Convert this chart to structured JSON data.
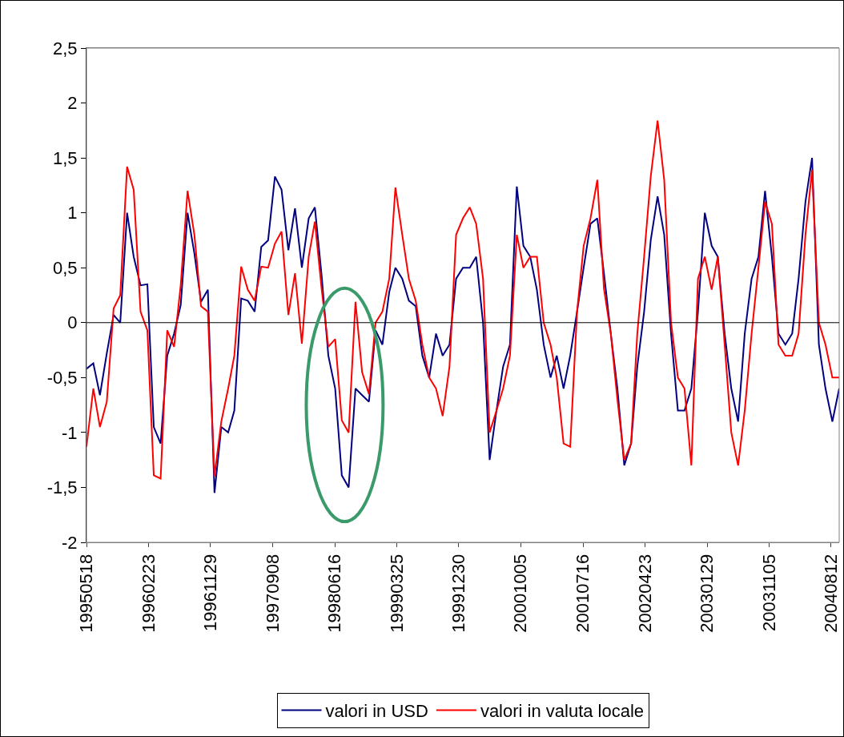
{
  "chart_data": {
    "type": "line",
    "x": [
      "1995-05-18",
      "1995-06-18",
      "1995-07-18",
      "1995-08-18",
      "1995-09-18",
      "1995-10-18",
      "1995-11-18",
      "1995-12-18",
      "1996-01-18",
      "1996-02-18",
      "1996-03-18",
      "1996-04-18",
      "1996-05-18",
      "1996-06-18",
      "1996-07-18",
      "1996-08-18",
      "1996-09-18",
      "1996-10-18",
      "1996-11-18",
      "1996-12-18",
      "1997-01-18",
      "1997-02-18",
      "1997-03-18",
      "1997-04-18",
      "1997-05-18",
      "1997-06-18",
      "1997-07-18",
      "1997-08-18",
      "1997-09-18",
      "1997-10-18",
      "1997-11-18",
      "1997-12-18",
      "1998-01-18",
      "1998-02-18",
      "1998-03-18",
      "1998-04-18",
      "1998-05-18",
      "1998-06-18",
      "1998-07-18",
      "1998-08-18",
      "1998-09-18",
      "1998-10-18",
      "1998-11-18",
      "1998-12-18",
      "1999-01-18",
      "1999-02-18",
      "1999-03-18",
      "1999-04-18",
      "1999-05-18",
      "1999-06-18",
      "1999-07-18",
      "1999-08-18",
      "1999-09-18",
      "1999-10-18",
      "1999-11-18",
      "1999-12-18",
      "2000-01-18",
      "2000-02-18",
      "2000-03-18",
      "2000-04-18",
      "2000-05-18",
      "2000-06-18",
      "2000-07-18",
      "2000-08-18",
      "2000-09-18",
      "2000-10-18",
      "2000-11-18",
      "2000-12-18",
      "2001-01-18",
      "2001-02-18",
      "2001-03-18",
      "2001-04-18",
      "2001-05-18",
      "2001-06-18",
      "2001-07-18",
      "2001-08-18",
      "2001-09-18",
      "2001-10-18",
      "2001-11-18",
      "2001-12-18",
      "2002-01-18",
      "2002-02-18",
      "2002-03-18",
      "2002-04-18",
      "2002-05-18",
      "2002-06-18",
      "2002-07-18",
      "2002-08-18",
      "2002-09-18",
      "2002-10-18",
      "2002-11-18",
      "2002-12-18",
      "2003-01-18",
      "2003-02-18",
      "2003-03-18",
      "2003-04-18",
      "2003-05-18",
      "2003-06-18",
      "2003-07-18",
      "2003-08-18",
      "2003-09-18",
      "2003-10-18",
      "2003-11-18",
      "2003-12-18",
      "2004-01-18",
      "2004-02-18",
      "2004-03-18",
      "2004-04-18",
      "2004-05-18",
      "2004-06-18",
      "2004-07-18",
      "2004-08-18",
      "2004-09-18"
    ],
    "series": [
      {
        "name": "valori in USD",
        "color": "#000080",
        "values": [
          -0.42,
          -0.37,
          -0.66,
          -0.28,
          0.07,
          0,
          1,
          0.6,
          0.34,
          0.35,
          -0.95,
          -1.1,
          -0.3,
          -0.1,
          0.16,
          1,
          0.63,
          0.19,
          0.3,
          -1.55,
          -0.95,
          -1,
          -0.8,
          0.22,
          0.2,
          0.1,
          0.69,
          0.75,
          1.33,
          1.21,
          0.66,
          1.04,
          0.5,
          0.95,
          1.05,
          0.42,
          -0.3,
          -0.6,
          -1.39,
          -1.5,
          -0.6,
          -0.66,
          -0.72,
          -0.07,
          -0.2,
          0.28,
          0.5,
          0.4,
          0.2,
          0.15,
          -0.3,
          -0.5,
          -0.1,
          -0.3,
          -0.2,
          0.4,
          0.5,
          0.5,
          0.6,
          0,
          -1.25,
          -0.8,
          -0.4,
          -0.2,
          1.24,
          0.7,
          0.6,
          0.3,
          -0.2,
          -0.5,
          -0.3,
          -0.6,
          -0.3,
          0.1,
          0.5,
          0.9,
          0.95,
          0.45,
          -0.1,
          -0.6,
          -1.3,
          -1.1,
          -0.4,
          0.1,
          0.75,
          1.15,
          0.8,
          -0.1,
          -0.8,
          -0.8,
          -0.6,
          0.1,
          1,
          0.7,
          0.6,
          -0.1,
          -0.6,
          -0.9,
          -0.1,
          0.4,
          0.6,
          1.2,
          0.6,
          -0.1,
          -0.2,
          -0.1,
          0.4,
          1.1,
          1.5,
          -0.2,
          -0.6,
          -0.9,
          -0.6
        ]
      },
      {
        "name": "valori in valuta locale",
        "color": "#ff0000",
        "values": [
          -1.13,
          -0.6,
          -0.95,
          -0.72,
          0.13,
          0.25,
          1.42,
          1.21,
          0.1,
          -0.07,
          -1.39,
          -1.42,
          -0.07,
          -0.22,
          0.34,
          1.2,
          0.8,
          0.15,
          0.1,
          -1.4,
          -0.9,
          -0.6,
          -0.3,
          0.51,
          0.3,
          0.2,
          0.51,
          0.5,
          0.72,
          0.83,
          0.07,
          0.45,
          -0.19,
          0.6,
          0.92,
          0.3,
          -0.22,
          -0.15,
          -0.89,
          -1,
          0.19,
          -0.45,
          -0.65,
          0,
          0.1,
          0.4,
          1.23,
          0.8,
          0.4,
          0.2,
          -0.2,
          -0.5,
          -0.6,
          -0.85,
          -0.4,
          0.8,
          0.95,
          1.05,
          0.9,
          0.4,
          -1,
          -0.8,
          -0.6,
          -0.3,
          0.8,
          0.5,
          0.6,
          0.6,
          0,
          -0.2,
          -0.5,
          -1.1,
          -1.13,
          0.1,
          0.7,
          0.95,
          1.3,
          0.31,
          -0.1,
          -0.7,
          -1.25,
          -1.1,
          -0.1,
          0.6,
          1.33,
          1.84,
          1.3,
          0,
          -0.5,
          -0.6,
          -1.3,
          0.4,
          0.6,
          0.3,
          0.6,
          -0.2,
          -1,
          -1.3,
          -0.8,
          -0.1,
          0.5,
          1.1,
          0.9,
          -0.2,
          -0.3,
          -0.3,
          -0.1,
          0.8,
          1.39,
          0,
          -0.2,
          -0.5,
          -0.5
        ]
      }
    ],
    "xlim": [
      "1995-05-18",
      "2004-09-18"
    ],
    "xticks": [
      {
        "value": "1995-05-18",
        "label": "19950518"
      },
      {
        "value": "1996-02-23",
        "label": "19960223"
      },
      {
        "value": "1996-11-29",
        "label": "19961129"
      },
      {
        "value": "1997-09-08",
        "label": "19970908"
      },
      {
        "value": "1998-06-16",
        "label": "19980616"
      },
      {
        "value": "1999-03-25",
        "label": "19990325"
      },
      {
        "value": "1999-12-30",
        "label": "19991230"
      },
      {
        "value": "2000-10-05",
        "label": "20001005"
      },
      {
        "value": "2001-07-16",
        "label": "20010716"
      },
      {
        "value": "2002-04-23",
        "label": "20020423"
      },
      {
        "value": "2003-01-29",
        "label": "20030129"
      },
      {
        "value": "2003-11-05",
        "label": "20031105"
      },
      {
        "value": "2004-08-12",
        "label": "20040812"
      }
    ],
    "ylim": [
      -2,
      2.5
    ],
    "yticks": [
      -2,
      {
        "value": -1.5,
        "label": "-1,5"
      },
      -1,
      {
        "value": -0.5,
        "label": "-0,5"
      },
      0,
      {
        "value": 0.5,
        "label": "0,5"
      },
      1,
      {
        "value": 1.5,
        "label": "1,5"
      },
      2,
      {
        "value": 2.5,
        "label": "2,5"
      }
    ],
    "ref_lines": [
      {
        "axis": "y",
        "value": 0,
        "color": "#000000",
        "line_style": "solid"
      }
    ],
    "grid": false,
    "legend": "bottom",
    "marker": "none",
    "line_style": "solid"
  }
}
